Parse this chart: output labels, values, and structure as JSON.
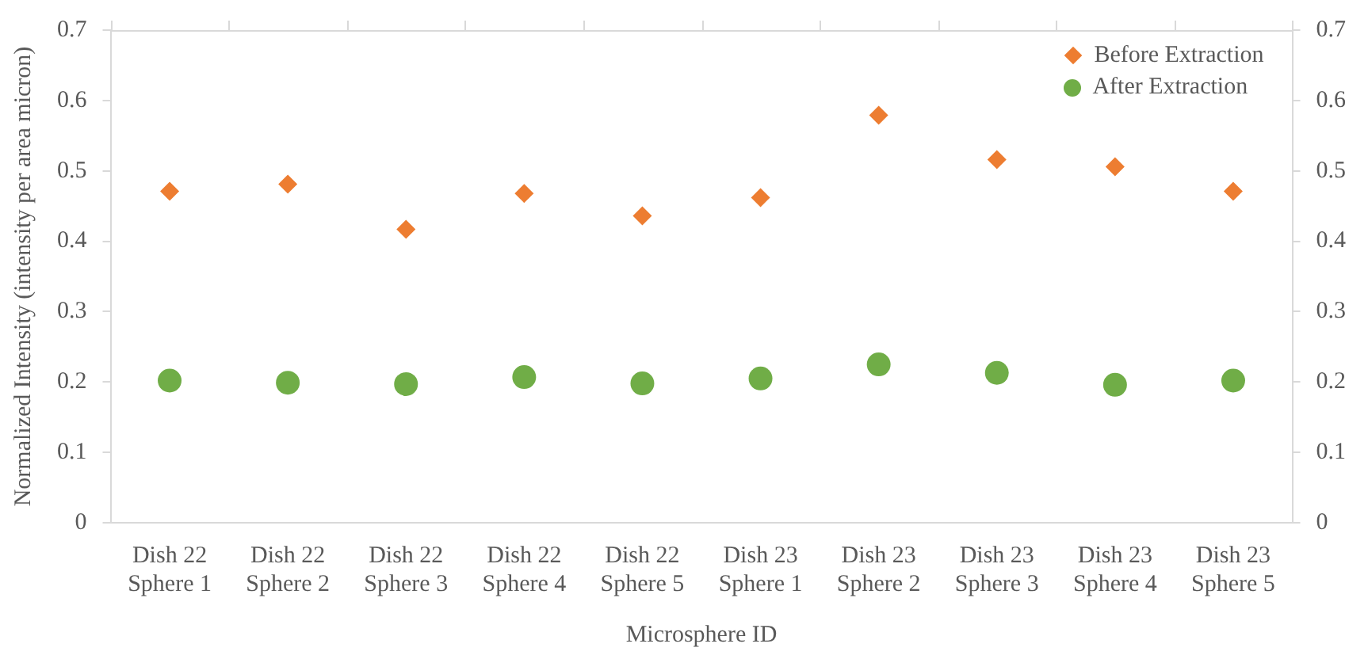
{
  "chart_data": {
    "type": "scatter",
    "xlabel": "Microsphere ID",
    "ylabel": "Normalized Intensity (intensity per area micron)",
    "categories": [
      "Dish 22\nSphere 1",
      "Dish 22\nSphere 2",
      "Dish 22\nSphere 3",
      "Dish 22\nSphere 4",
      "Dish 22\nSphere 5",
      "Dish 23\nSphere 1",
      "Dish 23\nSphere 2",
      "Dish 23\nSphere 3",
      "Dish 23\nSphere 4",
      "Dish 23\nSphere 5"
    ],
    "series": [
      {
        "name": "Before Extraction",
        "color": "#ed7d31",
        "marker": "diamond",
        "values": [
          0.471,
          0.481,
          0.417,
          0.468,
          0.436,
          0.462,
          0.579,
          0.516,
          0.506,
          0.471
        ]
      },
      {
        "name": "After Extraction",
        "color": "#70ad47",
        "marker": "circle",
        "values": [
          0.202,
          0.199,
          0.197,
          0.207,
          0.198,
          0.205,
          0.225,
          0.213,
          0.196,
          0.202
        ]
      }
    ],
    "ylim": [
      0,
      0.7
    ],
    "yticks": [
      0,
      0.1,
      0.2,
      0.3,
      0.4,
      0.5,
      0.6,
      0.7
    ],
    "y2lim": [
      0,
      0.7
    ],
    "y2ticks": [
      0,
      0.1,
      0.2,
      0.3,
      0.4,
      0.5,
      0.6,
      0.7
    ],
    "grid": false,
    "legend": "top right"
  }
}
